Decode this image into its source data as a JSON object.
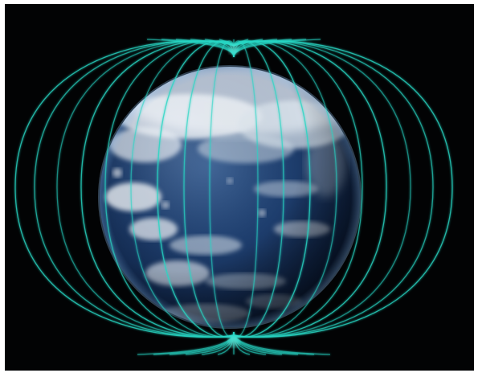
{
  "image": {
    "subject": "earth-magnetic-field",
    "colors": {
      "background": "#020304",
      "field_line": "#27d6c4",
      "ocean_dark": "#0d1f3e",
      "ocean_mid": "#1e3e6e",
      "cloud": "#e8eef4"
    }
  }
}
